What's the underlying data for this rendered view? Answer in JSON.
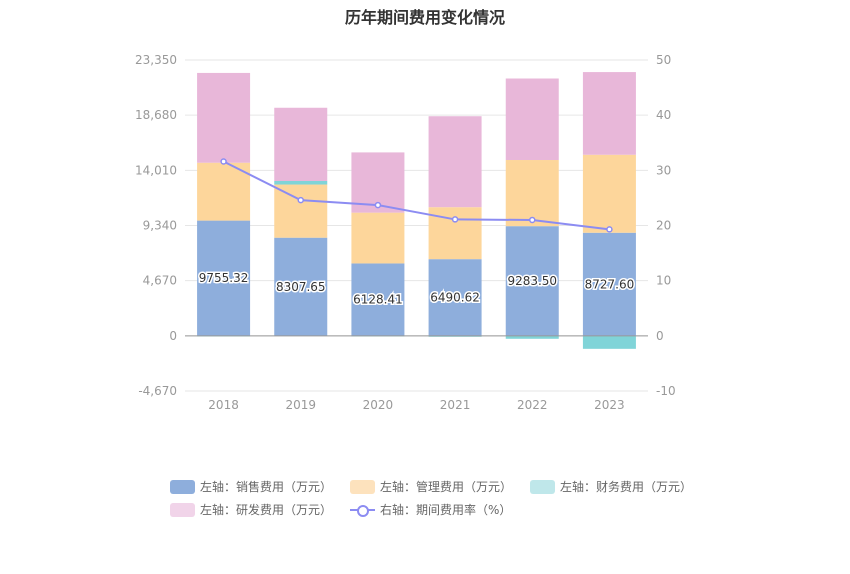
{
  "title": "历年期间费用变化情况",
  "colors": {
    "sales": "#8eaedc",
    "admin": "#fdd69b",
    "finance": "#80d4d8",
    "rnd": "#e8b7d9",
    "rate": "#8c8cf2"
  },
  "chart_data": {
    "type": "bar",
    "categories": [
      "2018",
      "2019",
      "2020",
      "2021",
      "2022",
      "2023"
    ],
    "left_axis": {
      "ticks": [
        "23,350",
        "18,680",
        "14,010",
        "9,340",
        "4,670",
        "0",
        "-4,670"
      ],
      "ylim": [
        -4670,
        23350
      ]
    },
    "right_axis": {
      "ticks": [
        "50",
        "40",
        "30",
        "20",
        "10",
        "0",
        "-10"
      ],
      "ylim": [
        -10,
        50
      ]
    },
    "series": [
      {
        "name": "左轴：销售费用（万元）",
        "key": "sales",
        "stack": true,
        "values": [
          9755.32,
          8307.65,
          6128.41,
          6490.62,
          9283.5,
          8727.6
        ]
      },
      {
        "name": "左轴：管理费用（万元）",
        "key": "admin",
        "stack": true,
        "values": [
          4900,
          4500,
          4300,
          4400,
          5600,
          6600
        ]
      },
      {
        "name": "左轴：财务费用（万元）",
        "key": "finance",
        "stack": true,
        "values": [
          -50,
          300,
          -50,
          -80,
          -250,
          -1100
        ]
      },
      {
        "name": "左轴：研发费用（万元）",
        "key": "rnd",
        "stack": true,
        "values": [
          7600,
          6200,
          5100,
          7700,
          6900,
          7000
        ]
      },
      {
        "name": "右轴：期间费用率（%）",
        "key": "rate",
        "type": "line",
        "axis": "right",
        "values": [
          31.6,
          24.6,
          23.7,
          21.1,
          21.0,
          19.3
        ]
      }
    ],
    "data_labels": [
      "9755.32",
      "8307.65",
      "6128.41",
      "6490.62",
      "9283.50",
      "8727.60"
    ],
    "legend_position": "bottom",
    "grid": true
  }
}
